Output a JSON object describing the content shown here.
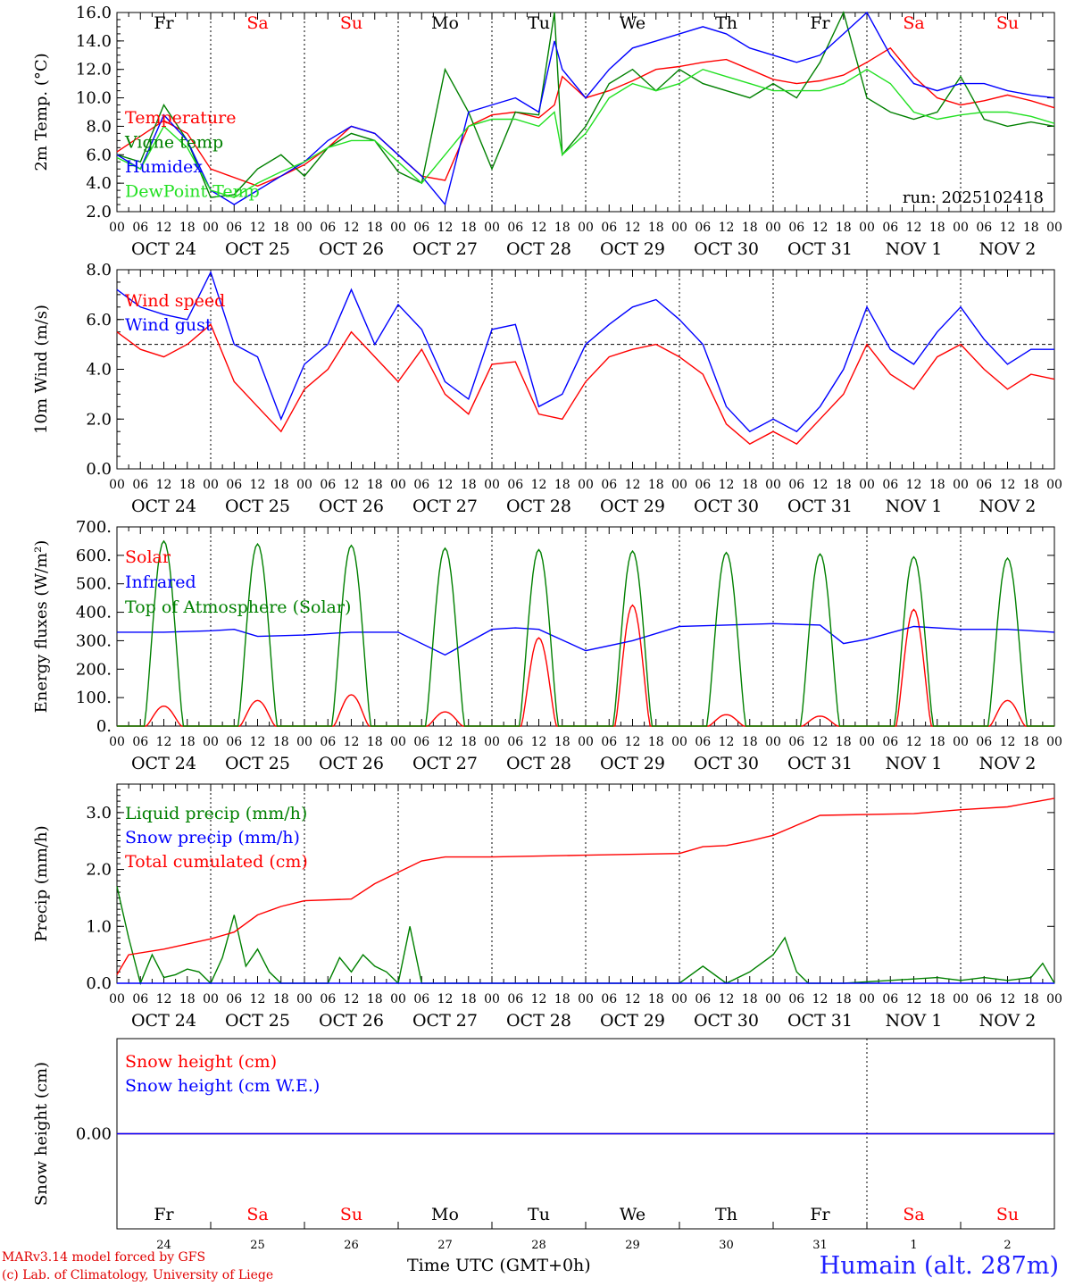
{
  "meta": {
    "run_label": "run: 2025102418",
    "model_line": "MARv3.14 model forced by GFS",
    "lab_line": "(c) Lab. of Climatology, University of Liege",
    "time_axis_label": "Time UTC (GMT+0h)",
    "station": "Humain (alt. 287m)"
  },
  "colors": {
    "red": "#ff0000",
    "blue": "#0000ff",
    "green": "#008000",
    "lightgreen": "#22e022",
    "black": "#000000"
  },
  "time_axis": {
    "hour_ticks": [
      "00",
      "06",
      "12",
      "18"
    ],
    "date_labels": [
      "OCT 24",
      "OCT 25",
      "OCT 26",
      "OCT 27",
      "OCT 28",
      "OCT 29",
      "OCT 30",
      "OCT 31",
      "NOV  1",
      "NOV  2"
    ],
    "weekdays": [
      {
        "label": "Fr",
        "weekend": false
      },
      {
        "label": "Sa",
        "weekend": true
      },
      {
        "label": "Su",
        "weekend": true
      },
      {
        "label": "Mo",
        "weekend": false
      },
      {
        "label": "Tu",
        "weekend": false
      },
      {
        "label": "We",
        "weekend": false
      },
      {
        "label": "Th",
        "weekend": false
      },
      {
        "label": "Fr",
        "weekend": false
      },
      {
        "label": "Sa",
        "weekend": true
      },
      {
        "label": "Su",
        "weekend": true
      }
    ],
    "day_numbers": [
      "24",
      "25",
      "26",
      "27",
      "28",
      "29",
      "30",
      "31",
      "1",
      "2"
    ]
  },
  "chart_data": [
    {
      "id": "temperature",
      "type": "line",
      "ylabel": "2m Temp. (°C)",
      "ylim": [
        2.0,
        16.0
      ],
      "yticks": [
        "2.0",
        "4.0",
        "6.0",
        "8.0",
        "10.0",
        "12.0",
        "14.0",
        "16.0"
      ],
      "x_unit": "hours since 2025-10-24 00 UTC",
      "x_range": [
        0,
        240
      ],
      "series": [
        {
          "name": "Temperature",
          "color": "red",
          "x": [
            0,
            12,
            18,
            24,
            36,
            42,
            48,
            54,
            60,
            66,
            72,
            78,
            84,
            90,
            96,
            102,
            108,
            112,
            114,
            120,
            126,
            132,
            138,
            144,
            150,
            156,
            162,
            168,
            174,
            180,
            186,
            192,
            198,
            204,
            210,
            216,
            222,
            228,
            234,
            240
          ],
          "y": [
            6.2,
            8.4,
            7.5,
            5.0,
            3.8,
            4.5,
            5.3,
            6.5,
            8.0,
            7.5,
            6.0,
            4.5,
            4.2,
            8.0,
            8.8,
            9.0,
            8.6,
            9.5,
            11.5,
            10.0,
            10.5,
            11.2,
            12.0,
            12.2,
            12.5,
            12.7,
            12.0,
            11.3,
            11.0,
            11.2,
            11.6,
            12.5,
            13.5,
            11.5,
            10.0,
            9.5,
            9.8,
            10.2,
            9.8,
            9.3
          ]
        },
        {
          "name": "Vigne temp",
          "color": "green",
          "x": [
            0,
            6,
            12,
            18,
            24,
            30,
            36,
            42,
            48,
            54,
            60,
            66,
            72,
            78,
            84,
            90,
            96,
            102,
            108,
            112,
            114,
            120,
            126,
            132,
            138,
            144,
            150,
            156,
            162,
            168,
            174,
            180,
            186,
            192,
            198,
            204,
            210,
            216,
            222,
            228,
            234,
            240
          ],
          "y": [
            6.0,
            5.5,
            9.5,
            7.0,
            3.0,
            3.2,
            5.0,
            6.0,
            4.5,
            6.5,
            7.5,
            7.0,
            4.8,
            4.0,
            12.0,
            9.0,
            5.0,
            9.0,
            8.8,
            16.0,
            6.0,
            8.0,
            11.0,
            12.0,
            10.5,
            12.0,
            11.0,
            10.5,
            10.0,
            11.0,
            10.0,
            12.5,
            16.0,
            10.0,
            9.0,
            8.5,
            9.0,
            11.5,
            8.5,
            8.0,
            8.3,
            8.0
          ]
        },
        {
          "name": "Humidex",
          "color": "blue",
          "x": [
            0,
            6,
            12,
            18,
            24,
            30,
            36,
            42,
            48,
            54,
            60,
            66,
            72,
            78,
            84,
            90,
            96,
            102,
            108,
            112,
            114,
            120,
            126,
            132,
            138,
            144,
            150,
            156,
            162,
            168,
            174,
            180,
            186,
            192,
            198,
            204,
            210,
            216,
            222,
            228,
            234,
            240
          ],
          "y": [
            6.0,
            5.0,
            8.8,
            7.0,
            3.5,
            2.5,
            3.5,
            4.5,
            5.5,
            7.0,
            8.0,
            7.5,
            6.0,
            4.5,
            2.5,
            9.0,
            9.5,
            10.0,
            9.0,
            14.0,
            12.0,
            10.0,
            12.0,
            13.5,
            14.0,
            14.5,
            15.0,
            14.5,
            13.5,
            13.0,
            12.5,
            13.0,
            14.5,
            16.0,
            13.0,
            11.0,
            10.5,
            11.0,
            11.0,
            10.5,
            10.2,
            10.0
          ]
        },
        {
          "name": "DewPoint Temp",
          "color": "lightgreen",
          "x": [
            0,
            6,
            12,
            18,
            24,
            30,
            36,
            42,
            48,
            54,
            60,
            66,
            72,
            78,
            84,
            90,
            96,
            102,
            108,
            112,
            114,
            120,
            126,
            132,
            138,
            144,
            150,
            156,
            162,
            168,
            174,
            180,
            186,
            192,
            198,
            204,
            210,
            216,
            222,
            228,
            234,
            240
          ],
          "y": [
            5.8,
            5.0,
            8.0,
            6.5,
            3.5,
            3.0,
            4.0,
            4.8,
            5.5,
            6.5,
            7.0,
            7.0,
            5.5,
            4.0,
            6.0,
            8.0,
            8.5,
            8.5,
            8.0,
            9.0,
            6.0,
            7.5,
            10.0,
            11.0,
            10.5,
            11.0,
            12.0,
            11.5,
            11.0,
            10.5,
            10.5,
            10.5,
            11.0,
            12.0,
            11.0,
            9.0,
            8.5,
            8.8,
            9.0,
            9.0,
            8.7,
            8.2
          ]
        }
      ],
      "legend": [
        "Temperature",
        "Vigne temp",
        "Humidex",
        "DewPoint Temp"
      ]
    },
    {
      "id": "wind",
      "type": "line",
      "ylabel": "10m Wind (m/s)",
      "ylim": [
        0.0,
        8.0
      ],
      "yticks": [
        "0.0",
        "2.0",
        "4.0",
        "6.0",
        "8.0"
      ],
      "reference_line": 5.0,
      "x_range": [
        0,
        240
      ],
      "series": [
        {
          "name": "Wind speed",
          "color": "red",
          "x": [
            0,
            6,
            12,
            18,
            24,
            30,
            36,
            42,
            48,
            54,
            60,
            66,
            72,
            78,
            84,
            90,
            96,
            102,
            108,
            114,
            120,
            126,
            132,
            138,
            144,
            150,
            156,
            162,
            168,
            174,
            180,
            186,
            192,
            198,
            204,
            210,
            216,
            222,
            228,
            234,
            240
          ],
          "y": [
            5.5,
            4.8,
            4.5,
            5.0,
            5.8,
            3.5,
            2.5,
            1.5,
            3.2,
            4.0,
            5.5,
            4.5,
            3.5,
            4.8,
            3.0,
            2.2,
            4.2,
            4.3,
            2.2,
            2.0,
            3.5,
            4.5,
            4.8,
            5.0,
            4.5,
            3.8,
            1.8,
            1.0,
            1.5,
            1.0,
            2.0,
            3.0,
            5.0,
            3.8,
            3.2,
            4.5,
            5.0,
            4.0,
            3.2,
            3.8,
            3.6
          ]
        },
        {
          "name": "Wind gust",
          "color": "blue",
          "x": [
            0,
            6,
            12,
            18,
            24,
            30,
            36,
            42,
            48,
            54,
            60,
            66,
            72,
            78,
            84,
            90,
            96,
            102,
            108,
            114,
            120,
            126,
            132,
            138,
            144,
            150,
            156,
            162,
            168,
            174,
            180,
            186,
            192,
            198,
            204,
            210,
            216,
            222,
            228,
            234,
            240
          ],
          "y": [
            7.2,
            6.5,
            6.2,
            6.0,
            7.9,
            5.0,
            4.5,
            2.0,
            4.2,
            5.0,
            7.2,
            5.0,
            6.6,
            5.6,
            3.5,
            2.8,
            5.6,
            5.8,
            2.5,
            3.0,
            5.0,
            5.8,
            6.5,
            6.8,
            6.0,
            5.0,
            2.5,
            1.5,
            2.0,
            1.5,
            2.5,
            4.0,
            6.5,
            4.8,
            4.2,
            5.5,
            6.5,
            5.2,
            4.2,
            4.8,
            4.8
          ]
        }
      ],
      "legend": [
        "Wind speed",
        "Wind gust"
      ]
    },
    {
      "id": "energy",
      "type": "line",
      "ylabel": "Energy fluxes (W/m²)",
      "ylim": [
        0,
        700
      ],
      "yticks": [
        "0.",
        "100.",
        "200.",
        "300.",
        "400.",
        "500.",
        "600.",
        "700."
      ],
      "x_range": [
        0,
        240
      ],
      "series": [
        {
          "name": "Solar",
          "color": "red",
          "peaks": [
            {
              "day": 0,
              "max": 70
            },
            {
              "day": 1,
              "max": 90
            },
            {
              "day": 2,
              "max": 110
            },
            {
              "day": 3,
              "max": 50
            },
            {
              "day": 4,
              "max": 310
            },
            {
              "day": 5,
              "max": 425
            },
            {
              "day": 6,
              "max": 40
            },
            {
              "day": 7,
              "max": 35
            },
            {
              "day": 8,
              "max": 410
            },
            {
              "day": 9,
              "max": 90
            }
          ]
        },
        {
          "name": "Infrared",
          "color": "blue",
          "x": [
            0,
            12,
            24,
            30,
            36,
            48,
            60,
            72,
            84,
            96,
            102,
            108,
            120,
            132,
            144,
            156,
            168,
            180,
            186,
            192,
            204,
            216,
            228,
            240
          ],
          "y": [
            330,
            330,
            335,
            340,
            315,
            320,
            330,
            330,
            250,
            340,
            345,
            340,
            265,
            300,
            350,
            355,
            360,
            355,
            290,
            305,
            350,
            340,
            340,
            330
          ]
        },
        {
          "name": "Top of Atmosphere (Solar)",
          "color": "green",
          "peaks": [
            {
              "day": 0,
              "max": 650
            },
            {
              "day": 1,
              "max": 640
            },
            {
              "day": 2,
              "max": 635
            },
            {
              "day": 3,
              "max": 625
            },
            {
              "day": 4,
              "max": 620
            },
            {
              "day": 5,
              "max": 615
            },
            {
              "day": 6,
              "max": 610
            },
            {
              "day": 7,
              "max": 605
            },
            {
              "day": 8,
              "max": 595
            },
            {
              "day": 9,
              "max": 590
            }
          ]
        }
      ],
      "legend": [
        "Solar",
        "Infrared",
        "Top of Atmosphere (Solar)"
      ]
    },
    {
      "id": "precip",
      "type": "line",
      "ylabel": "Precip (mm/h)",
      "ylim": [
        0.0,
        3.5
      ],
      "yticks": [
        "0.0",
        "1.0",
        "2.0",
        "3.0"
      ],
      "x_range": [
        0,
        240
      ],
      "series": [
        {
          "name": "Liquid precip (mm/h)",
          "color": "green",
          "x": [
            0,
            3,
            6,
            9,
            12,
            15,
            18,
            21,
            24,
            27,
            30,
            33,
            36,
            39,
            42,
            45,
            48,
            51,
            54,
            57,
            60,
            63,
            66,
            69,
            72,
            75,
            78,
            84,
            90,
            102,
            114,
            144,
            150,
            156,
            162,
            168,
            171,
            174,
            177,
            180,
            186,
            198,
            210,
            216,
            222,
            228,
            234,
            237,
            240
          ],
          "y": [
            1.7,
            0.8,
            0.0,
            0.5,
            0.1,
            0.15,
            0.25,
            0.2,
            0.0,
            0.45,
            1.2,
            0.3,
            0.6,
            0.2,
            0.0,
            0.0,
            0.0,
            0.0,
            0.0,
            0.45,
            0.2,
            0.5,
            0.3,
            0.2,
            0.0,
            1.0,
            0.0,
            0.0,
            0.0,
            0.0,
            0.0,
            0.0,
            0.3,
            0.0,
            0.2,
            0.5,
            0.8,
            0.2,
            0.0,
            0.0,
            0.0,
            0.05,
            0.1,
            0.05,
            0.1,
            0.05,
            0.1,
            0.35,
            0.0
          ]
        },
        {
          "name": "Snow precip (mm/h)",
          "color": "blue",
          "x": [
            0,
            240
          ],
          "y": [
            0,
            0
          ]
        },
        {
          "name": "Total cumulated (cm)",
          "color": "red",
          "x": [
            0,
            3,
            12,
            24,
            30,
            36,
            42,
            48,
            60,
            66,
            72,
            78,
            84,
            96,
            120,
            144,
            150,
            156,
            162,
            168,
            180,
            204,
            216,
            228,
            240
          ],
          "y": [
            0.15,
            0.5,
            0.6,
            0.78,
            0.9,
            1.2,
            1.35,
            1.45,
            1.48,
            1.75,
            1.95,
            2.15,
            2.22,
            2.22,
            2.25,
            2.28,
            2.4,
            2.42,
            2.5,
            2.6,
            2.95,
            2.98,
            3.05,
            3.1,
            3.25
          ]
        }
      ],
      "legend": [
        "Liquid precip (mm/h)",
        "Snow precip (mm/h)",
        "Total cumulated (cm)"
      ]
    },
    {
      "id": "snow",
      "type": "line",
      "ylabel": "Snow height (cm)",
      "ylim": [
        -1,
        1
      ],
      "yticks": [
        "0.00"
      ],
      "x_range": [
        0,
        240
      ],
      "series": [
        {
          "name": "Snow height (cm)",
          "color": "red",
          "x": [
            0,
            240
          ],
          "y": [
            0,
            0
          ]
        },
        {
          "name": "Snow height (cm W.E.)",
          "color": "blue",
          "x": [
            0,
            240
          ],
          "y": [
            0,
            0
          ]
        }
      ],
      "legend": [
        "Snow height (cm)",
        "Snow height (cm W.E.)"
      ]
    }
  ]
}
